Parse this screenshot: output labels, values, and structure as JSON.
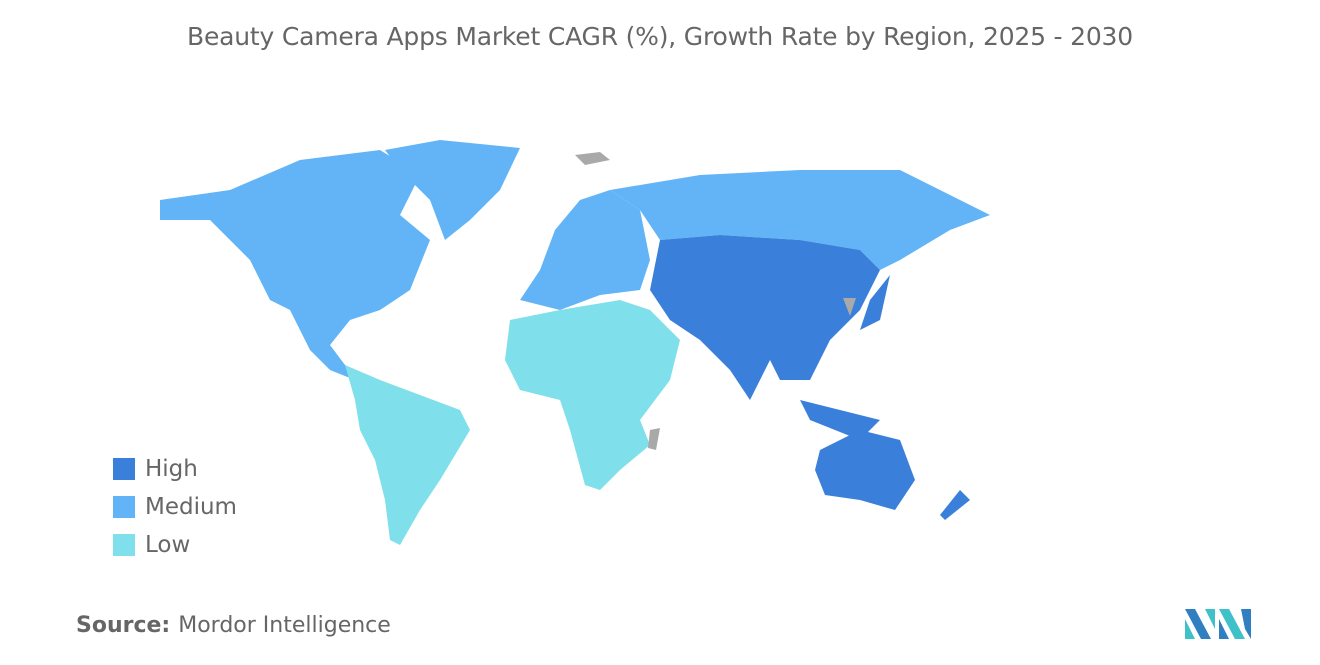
{
  "title": "Beauty Camera Apps Market CAGR (%), Growth Rate by Region, 2025 - 2030",
  "legend": [
    {
      "label": "High",
      "color": "#3a7fd9"
    },
    {
      "label": "Medium",
      "color": "#62b4f7"
    },
    {
      "label": "Low",
      "color": "#7fdfea"
    }
  ],
  "no_data_color": "#a9a9a9",
  "regions": {
    "North America": "Medium",
    "Europe": "Medium",
    "Russia": "Medium",
    "Asia-Pacific": "High",
    "South America": "Low",
    "Middle East and Africa": "Low"
  },
  "source": {
    "label": "Source:",
    "value": "Mordor Intelligence"
  },
  "logo": "Mordor Intelligence"
}
